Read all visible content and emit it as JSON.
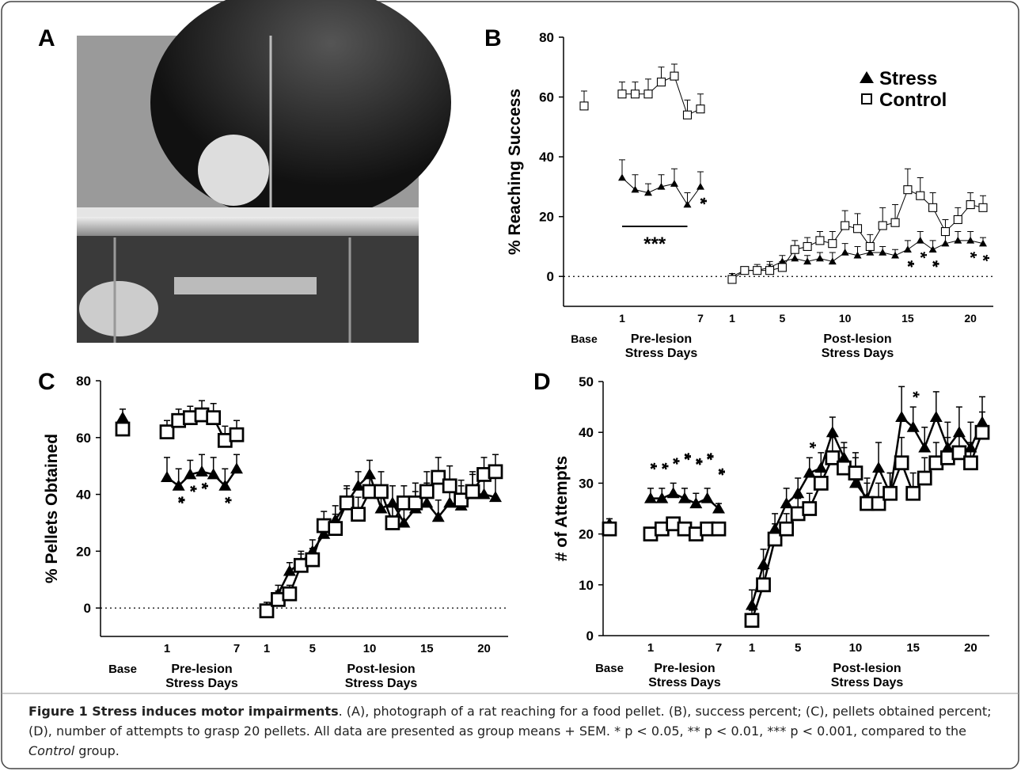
{
  "panel_a": {
    "label": "A"
  },
  "chart_data": [
    {
      "type": "line",
      "panel": "B",
      "y_label": "% Reaching Success",
      "categories": [
        "Base",
        "1",
        null,
        null,
        null,
        null,
        null,
        "7",
        "1",
        null,
        null,
        null,
        "5",
        null,
        null,
        null,
        null,
        "10",
        null,
        null,
        null,
        null,
        "15",
        null,
        null,
        null,
        null,
        "20",
        null
      ],
      "x_group_labels": [
        [
          "Pre-lesion",
          "Stress Days"
        ],
        [
          "Post-lesion",
          "Stress Days"
        ]
      ],
      "series": [
        {
          "name": "Stress",
          "color": "#000000",
          "marker": "triangle",
          "values": [
            null,
            33,
            29,
            28,
            30,
            31,
            24,
            30,
            0,
            2,
            2,
            3,
            5,
            6,
            5,
            6,
            5,
            8,
            7,
            8,
            8,
            7,
            9,
            12,
            9,
            11,
            12,
            12,
            11
          ],
          "errors": [
            null,
            6,
            5,
            3,
            4,
            5,
            4,
            5,
            1,
            1,
            1,
            2,
            2,
            2,
            2,
            2,
            3,
            3,
            3,
            3,
            2,
            2,
            3,
            3,
            3,
            3,
            3,
            3,
            2
          ]
        },
        {
          "name": "Control",
          "color": "#000000",
          "marker": "square",
          "values": [
            57,
            61,
            61,
            61,
            65,
            67,
            54,
            56,
            -1,
            2,
            2,
            2,
            3,
            9,
            10,
            12,
            11,
            17,
            16,
            10,
            17,
            18,
            29,
            27,
            23,
            15,
            19,
            24,
            23
          ],
          "errors": [
            5,
            4,
            4,
            5,
            5,
            4,
            5,
            5,
            1,
            1,
            2,
            2,
            2,
            3,
            3,
            3,
            4,
            5,
            5,
            4,
            6,
            6,
            7,
            6,
            5,
            4,
            4,
            4,
            4
          ]
        }
      ],
      "significance": [
        null,
        null,
        null,
        null,
        null,
        null,
        null,
        "**",
        null,
        null,
        null,
        null,
        null,
        null,
        null,
        null,
        null,
        null,
        null,
        null,
        null,
        null,
        "**",
        "*",
        "**",
        null,
        null,
        "*",
        "*"
      ],
      "bracket_label": "***",
      "ylim": [
        -10,
        80
      ],
      "yticks": [
        0,
        20,
        40,
        60,
        80
      ],
      "reference_line": 0,
      "legend": "upper right"
    },
    {
      "type": "line",
      "panel": "C",
      "y_label": "% Pellets Obtained",
      "categories": [
        "Base",
        "1",
        null,
        null,
        null,
        null,
        null,
        "7",
        "1",
        null,
        null,
        null,
        "5",
        null,
        null,
        null,
        null,
        "10",
        null,
        null,
        null,
        null,
        "15",
        null,
        null,
        null,
        null,
        "20",
        null
      ],
      "x_group_labels": [
        [
          "Pre-lesion",
          "Stress Days"
        ],
        [
          "Post-lesion",
          "Stress Days"
        ]
      ],
      "series": [
        {
          "name": "Stress",
          "color": "#000000",
          "marker": "triangle",
          "values": [
            67,
            46,
            43,
            47,
            48,
            47,
            43,
            49,
            0,
            5,
            13,
            16,
            20,
            26,
            31,
            37,
            43,
            47,
            35,
            37,
            30,
            35,
            37,
            32,
            37,
            36,
            40,
            40,
            39
          ],
          "errors": [
            3,
            7,
            6,
            5,
            6,
            6,
            6,
            5,
            2,
            3,
            3,
            4,
            4,
            5,
            5,
            5,
            5,
            5,
            6,
            6,
            6,
            6,
            7,
            6,
            7,
            7,
            7,
            8,
            8
          ]
        },
        {
          "name": "Control",
          "color": "#000000",
          "marker": "square",
          "values": [
            63,
            62,
            66,
            67,
            68,
            67,
            59,
            61,
            -1,
            3,
            5,
            15,
            17,
            29,
            28,
            37,
            33,
            41,
            41,
            30,
            37,
            37,
            41,
            46,
            43,
            38,
            41,
            47,
            48
          ],
          "errors": [
            4,
            4,
            4,
            4,
            5,
            5,
            5,
            5,
            2,
            3,
            3,
            4,
            4,
            5,
            5,
            6,
            6,
            6,
            7,
            6,
            6,
            7,
            7,
            7,
            7,
            7,
            7,
            6,
            6
          ]
        }
      ],
      "significance": [
        null,
        null,
        "***",
        "**",
        "**",
        null,
        "**",
        null,
        null,
        null,
        null,
        null,
        null,
        null,
        null,
        null,
        null,
        null,
        null,
        null,
        null,
        null,
        null,
        null,
        null,
        null,
        null,
        null,
        null
      ],
      "ylim": [
        -10,
        80
      ],
      "yticks": [
        0,
        20,
        40,
        60,
        80
      ],
      "reference_line": 0,
      "legend": "none"
    },
    {
      "type": "line",
      "panel": "D",
      "y_label": "# of Attempts",
      "categories": [
        "Base",
        "1",
        null,
        null,
        null,
        null,
        null,
        "7",
        "1",
        null,
        null,
        null,
        "5",
        null,
        null,
        null,
        null,
        "10",
        null,
        null,
        null,
        null,
        "15",
        null,
        null,
        null,
        null,
        "20",
        null
      ],
      "x_group_labels": [
        [
          "Pre-lesion",
          "Stress Days"
        ],
        [
          "Post-lesion",
          "Stress Days"
        ]
      ],
      "series": [
        {
          "name": "Stress",
          "color": "#000000",
          "marker": "triangle",
          "values": [
            22,
            27,
            27,
            28,
            27,
            26,
            27,
            25,
            6,
            14,
            21,
            26,
            28,
            32,
            33,
            40,
            35,
            30,
            27,
            33,
            28,
            43,
            41,
            37,
            43,
            37,
            40,
            37,
            42
          ],
          "errors": [
            1,
            2,
            2,
            2,
            2,
            2,
            2,
            1,
            3,
            3,
            3,
            3,
            3,
            3,
            3,
            3,
            3,
            5,
            4,
            5,
            4,
            6,
            4,
            4,
            5,
            5,
            5,
            5,
            5
          ]
        },
        {
          "name": "Control",
          "color": "#000000",
          "marker": "square",
          "values": [
            21,
            20,
            21,
            22,
            21,
            20,
            21,
            21,
            3,
            10,
            19,
            21,
            24,
            25,
            30,
            35,
            33,
            32,
            26,
            26,
            28,
            34,
            28,
            31,
            34,
            35,
            36,
            34,
            40
          ],
          "errors": [
            1,
            1,
            1,
            1,
            1,
            1,
            1,
            1,
            2,
            3,
            3,
            3,
            3,
            3,
            3,
            4,
            4,
            4,
            4,
            4,
            4,
            5,
            4,
            4,
            4,
            4,
            4,
            4,
            4
          ]
        }
      ],
      "significance": [
        null,
        "**",
        "**",
        "**",
        "***",
        "***",
        "***",
        "***",
        null,
        null,
        null,
        null,
        null,
        "*",
        null,
        null,
        null,
        null,
        null,
        null,
        null,
        null,
        "*",
        null,
        null,
        null,
        null,
        null,
        null
      ],
      "ylim": [
        0,
        50
      ],
      "yticks": [
        0,
        10,
        20,
        30,
        40,
        50
      ],
      "legend": "none"
    }
  ],
  "caption": {
    "title": "Figure 1 Stress induces motor impairments",
    "text": ". (A), photograph of a rat reaching for a food pellet. (B), success percent; (C), pellets obtained percent; (D), number of attempts to grasp 20 pellets. All data are presented as group means + SEM. * p < 0.05, ** p < 0.01, *** p < 0.001, compared to the ",
    "italic": "Control",
    "end": " group."
  }
}
